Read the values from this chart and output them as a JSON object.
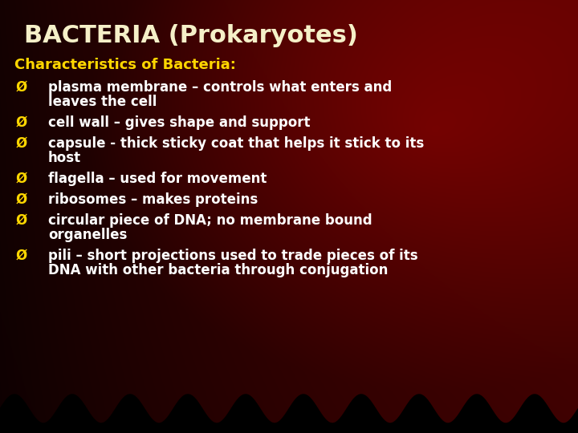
{
  "title": "BACTERIA (Prokaryotes)",
  "subtitle": "Characteristics of Bacteria:",
  "title_color": "#F5F0C8",
  "subtitle_color": "#FFD700",
  "bullet_color": "#FFFFFF",
  "bullet_symbol": "Ø",
  "bullet_symbol_color": "#FFD700",
  "title_fontsize": 22,
  "subtitle_fontsize": 13,
  "bullet_fontsize": 12,
  "bullets": [
    [
      "plasma membrane – controls what enters and",
      "leaves the cell"
    ],
    [
      "cell wall – gives shape and support"
    ],
    [
      "capsule - thick sticky coat that helps it stick to its",
      "host"
    ],
    [
      "flagella – used for movement"
    ],
    [
      "ribosomes – makes proteins"
    ],
    [
      "circular piece of DNA; no membrane bound",
      "organelles"
    ],
    [
      "pili – short projections used to trade pieces of its",
      "DNA with other bacteria through conjugation"
    ]
  ]
}
